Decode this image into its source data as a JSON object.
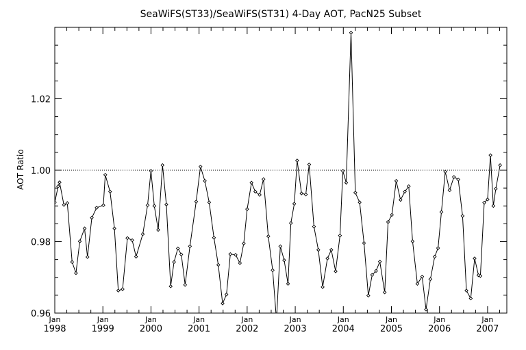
{
  "chart_data": {
    "type": "line",
    "title": "SeaWiFS(ST33)/SeaWiFS(ST31) 4-Day AOT, PacN25 Subset",
    "xlabel": "",
    "ylabel": "AOT Ratio",
    "xlim": [
      1998.0,
      2007.4
    ],
    "ylim": [
      0.96,
      1.04
    ],
    "ytick_values": [
      0.96,
      0.98,
      1.0,
      1.02
    ],
    "ytick_labels": [
      "0.96",
      "0.98",
      "1.00",
      "1.02"
    ],
    "xtick_month_label": "Jan",
    "xtick_values": [
      1998,
      1999,
      2000,
      2001,
      2002,
      2003,
      2004,
      2005,
      2006,
      2007
    ],
    "xtick_labels": [
      "1998",
      "1999",
      "2000",
      "2001",
      "2002",
      "2003",
      "2004",
      "2005",
      "2006",
      "2007"
    ],
    "reference_line": {
      "y": 1.0,
      "style": "dotted"
    },
    "grid": false,
    "series": [
      {
        "marker": "diamond",
        "x": [
          1998.0,
          1998.07,
          1998.1,
          1998.19,
          1998.26,
          1998.36,
          1998.44,
          1998.52,
          1998.62,
          1998.68,
          1998.77,
          1998.87,
          1999.01,
          1999.05,
          1999.15,
          1999.24,
          1999.32,
          1999.41,
          1999.51,
          1999.61,
          1999.69,
          1999.83,
          1999.93,
          2000.0,
          2000.07,
          2000.15,
          2000.24,
          2000.32,
          2000.41,
          2000.48,
          2000.56,
          2000.63,
          2000.71,
          2000.81,
          2000.94,
          2001.03,
          2001.12,
          2001.21,
          2001.31,
          2001.4,
          2001.49,
          2001.57,
          2001.65,
          2001.76,
          2001.85,
          2001.93,
          2002.0,
          2002.09,
          2002.17,
          2002.26,
          2002.34,
          2002.44,
          2002.53,
          2002.61,
          2002.69,
          2002.77,
          2002.85,
          2002.91,
          2002.98,
          2003.04,
          2003.13,
          2003.22,
          2003.29,
          2003.39,
          2003.48,
          2003.57,
          2003.67,
          2003.75,
          2003.84,
          2003.93,
          2003.99,
          2004.06,
          2004.16,
          2004.25,
          2004.34,
          2004.43,
          2004.52,
          2004.6,
          2004.68,
          2004.76,
          2004.86,
          2004.93,
          2005.01,
          2005.1,
          2005.19,
          2005.28,
          2005.36,
          2005.44,
          2005.54,
          2005.64,
          2005.72,
          2005.81,
          2005.9,
          2005.97,
          2006.04,
          2006.12,
          2006.21,
          2006.3,
          2006.39,
          2006.48,
          2006.56,
          2006.65,
          2006.73,
          2006.81,
          2006.85,
          2006.93,
          2007.0,
          2007.06,
          2007.12,
          2007.17,
          2007.26
        ],
        "y": [
          0.991,
          0.9955,
          0.9966,
          0.9903,
          0.9908,
          0.9743,
          0.9712,
          0.9801,
          0.9837,
          0.9757,
          0.9867,
          0.9895,
          0.9902,
          0.9987,
          0.994,
          0.9837,
          0.9663,
          0.9667,
          0.981,
          0.9804,
          0.9758,
          0.9821,
          0.9902,
          0.9998,
          0.99,
          0.9833,
          1.0014,
          0.9904,
          0.9675,
          0.9743,
          0.9781,
          0.9764,
          0.9679,
          0.9787,
          0.9912,
          1.001,
          0.997,
          0.991,
          0.9811,
          0.9735,
          0.9627,
          0.9652,
          0.9765,
          0.9763,
          0.974,
          0.9795,
          0.9891,
          0.9965,
          0.994,
          0.9931,
          0.9975,
          0.9815,
          0.972,
          0.958,
          0.9787,
          0.9748,
          0.9682,
          0.9852,
          0.9906,
          1.0027,
          0.9935,
          0.9932,
          1.0016,
          0.9842,
          0.9777,
          0.9673,
          0.9753,
          0.9777,
          0.9717,
          0.9817,
          0.9998,
          0.9965,
          1.0385,
          0.9937,
          0.991,
          0.9796,
          0.9649,
          0.9707,
          0.9718,
          0.9744,
          0.9658,
          0.9855,
          0.9875,
          0.997,
          0.9917,
          0.994,
          0.9955,
          0.9801,
          0.9682,
          0.9702,
          0.961,
          0.9695,
          0.9758,
          0.9782,
          0.9883,
          0.9996,
          0.9944,
          0.9981,
          0.9974,
          0.9872,
          0.9663,
          0.9641,
          0.9753,
          0.9706,
          0.9704,
          0.9909,
          0.9918,
          1.0042,
          0.99,
          0.9948,
          1.0014
        ]
      }
    ]
  }
}
